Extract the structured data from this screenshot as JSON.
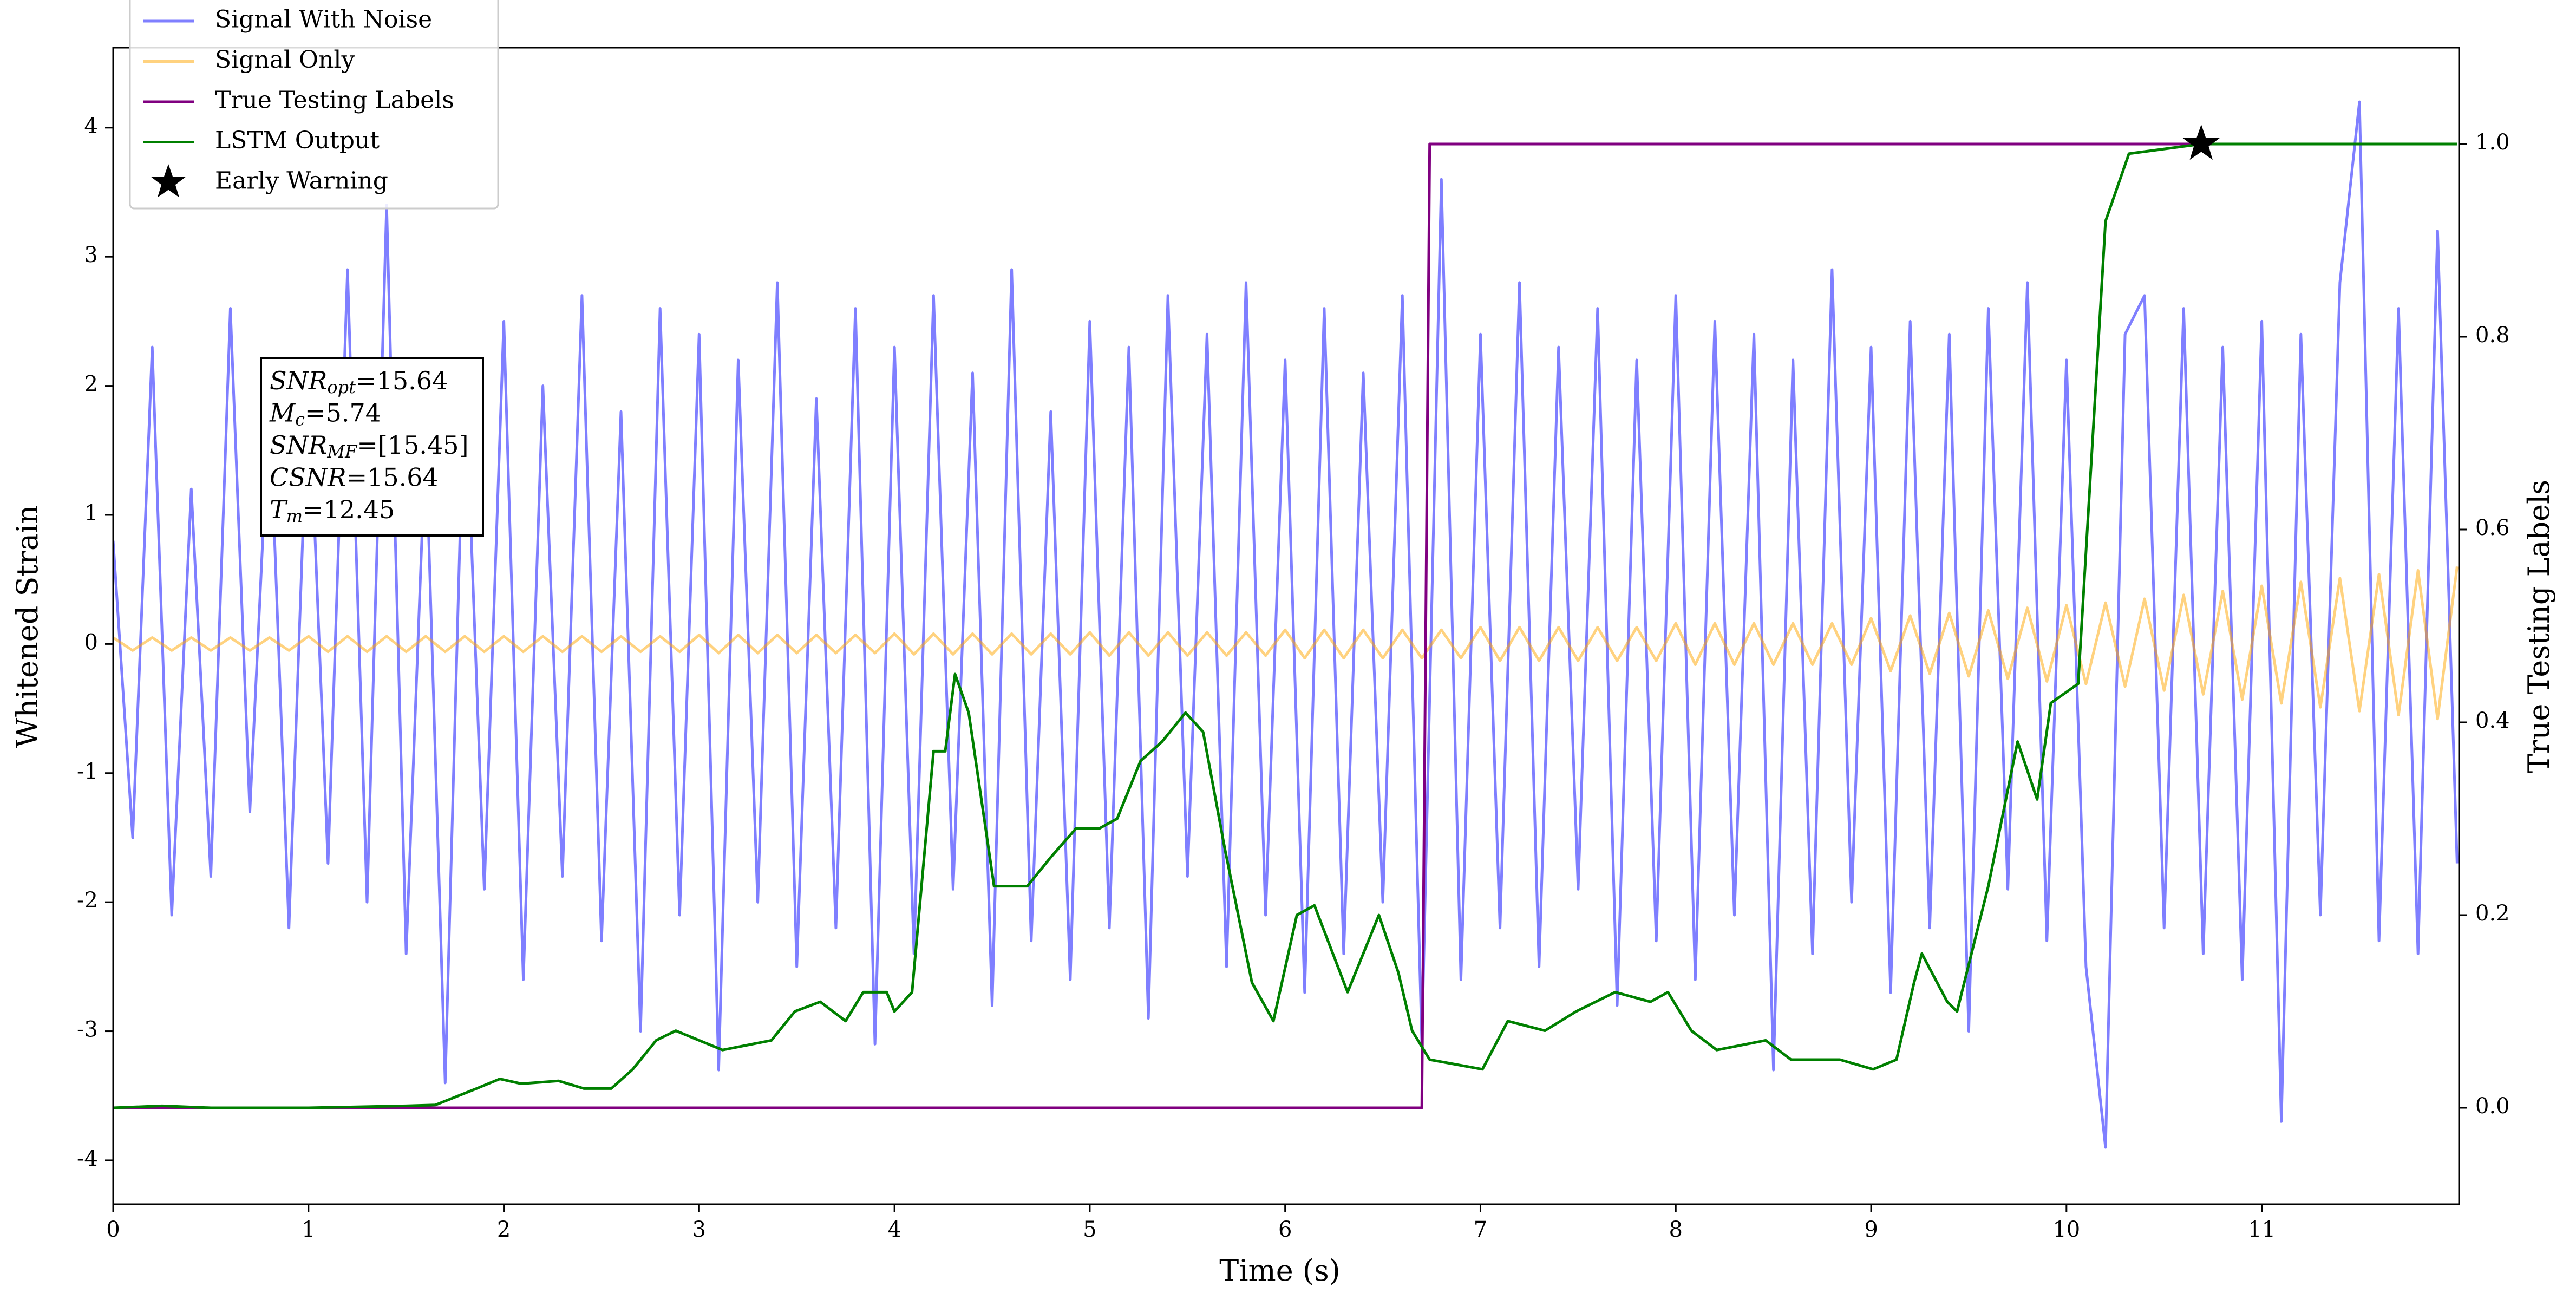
{
  "chart_data": {
    "type": "line",
    "xlabel": "Time (s)",
    "ylabel": "Whitened Strain",
    "y2label": "True Testing Labels",
    "xlim": [
      0,
      12.01
    ],
    "ylim": [
      -4.34,
      4.62
    ],
    "y2lim": [
      -0.1,
      1.1
    ],
    "xticks": [
      0,
      1,
      2,
      3,
      4,
      5,
      6,
      7,
      8,
      9,
      10,
      11
    ],
    "yticks": [
      -4,
      -3,
      -2,
      -1,
      0,
      1,
      2,
      3,
      4
    ],
    "y2ticks": [
      {
        "value": 0,
        "label": "0.0"
      },
      0.2,
      0.4,
      0.6,
      0.8,
      {
        "value": 1,
        "label": "1.0"
      }
    ],
    "legend": "upper left",
    "annotation": [
      {
        "name": "SNR",
        "sub": "opt",
        "text": "=15.64"
      },
      {
        "name": "M",
        "sub": "c",
        "text": "=5.74"
      },
      {
        "name": "SNR",
        "sub": "MF",
        "text": "=[15.45]"
      },
      {
        "name": "CSNR",
        "sub": null,
        "text": "=15.64"
      },
      {
        "name": "T",
        "sub": "m",
        "text": "=12.45"
      }
    ],
    "series": [
      {
        "name": "Signal With Noise",
        "color": "#0000ff",
        "alpha": 0.5,
        "x": [
          0,
          0.1,
          0.2,
          0.3,
          0.4,
          0.5,
          0.6,
          0.7,
          0.8,
          0.9,
          1,
          1.1,
          1.2,
          1.3,
          1.4,
          1.5,
          1.6,
          1.7,
          1.8,
          1.9,
          2,
          2.1,
          2.2,
          2.3,
          2.4,
          2.5,
          2.6,
          2.7,
          2.8,
          2.9,
          3,
          3.1,
          3.2,
          3.3,
          3.4,
          3.5,
          3.6,
          3.7,
          3.8,
          3.9,
          4,
          4.1,
          4.2,
          4.3,
          4.4,
          4.5,
          4.6,
          4.7,
          4.8,
          4.9,
          5,
          5.1,
          5.2,
          5.3,
          5.4,
          5.5,
          5.6,
          5.7,
          5.8,
          5.9,
          6,
          6.1,
          6.2,
          6.3,
          6.4,
          6.5,
          6.6,
          6.7,
          6.8,
          6.9,
          7,
          7.1,
          7.2,
          7.3,
          7.4,
          7.5,
          7.6,
          7.7,
          7.8,
          7.9,
          8,
          8.1,
          8.2,
          8.3,
          8.4,
          8.5,
          8.6,
          8.7,
          8.8,
          8.9,
          9,
          9.1,
          9.2,
          9.3,
          9.4,
          9.5,
          9.6,
          9.7,
          9.8,
          9.9,
          10,
          10.1,
          10.2,
          10.3,
          10.4,
          10.5,
          10.6,
          10.7,
          10.8,
          10.9,
          11,
          11.1,
          11.2,
          11.3,
          11.4,
          11.5,
          11.6,
          11.7,
          11.8,
          11.9,
          12
        ],
        "values": [
          0.8,
          -1.5,
          2.3,
          -2.1,
          1.2,
          -1.8,
          2.6,
          -1.3,
          1.9,
          -2.2,
          2.1,
          -1.7,
          2.9,
          -2.0,
          3.4,
          -2.4,
          1.6,
          -3.4,
          2.2,
          -1.9,
          2.5,
          -2.6,
          2.0,
          -1.8,
          2.7,
          -2.3,
          1.8,
          -3.0,
          2.6,
          -2.1,
          2.4,
          -3.3,
          2.2,
          -2.0,
          2.8,
          -2.5,
          1.9,
          -2.2,
          2.6,
          -3.1,
          2.3,
          -2.4,
          2.7,
          -1.9,
          2.1,
          -2.8,
          2.9,
          -2.3,
          1.8,
          -2.6,
          2.5,
          -2.2,
          2.3,
          -2.9,
          2.7,
          -1.8,
          2.4,
          -2.5,
          2.8,
          -2.1,
          2.2,
          -2.7,
          2.6,
          -2.4,
          2.1,
          -2.0,
          2.7,
          -3.1,
          3.6,
          -2.6,
          2.4,
          -2.2,
          2.8,
          -2.5,
          2.3,
          -1.9,
          2.6,
          -2.8,
          2.2,
          -2.3,
          2.7,
          -2.6,
          2.5,
          -2.1,
          2.4,
          -3.3,
          2.2,
          -2.4,
          2.9,
          -2.0,
          2.3,
          -2.7,
          2.5,
          -2.2,
          2.4,
          -3.0,
          2.6,
          -1.9,
          2.8,
          -2.3,
          2.2,
          -2.5,
          -3.9,
          2.4,
          2.7,
          -2.2,
          2.6,
          -2.4,
          2.3,
          -2.6,
          2.5,
          -3.7,
          2.4,
          -2.1,
          2.8,
          4.2,
          -2.3,
          2.6,
          -2.4,
          3.2,
          -1.7
        ]
      },
      {
        "name": "Signal Only",
        "color": "#ffa500",
        "alpha": 0.5,
        "x": [
          0,
          0.1,
          0.2,
          0.3,
          0.4,
          0.5,
          0.6,
          0.7,
          0.8,
          0.9,
          1,
          1.1,
          1.2,
          1.3,
          1.4,
          1.5,
          1.6,
          1.7,
          1.8,
          1.9,
          2,
          2.1,
          2.2,
          2.3,
          2.4,
          2.5,
          2.6,
          2.7,
          2.8,
          2.9,
          3,
          3.1,
          3.2,
          3.3,
          3.4,
          3.5,
          3.6,
          3.7,
          3.8,
          3.9,
          4,
          4.1,
          4.2,
          4.3,
          4.4,
          4.5,
          4.6,
          4.7,
          4.8,
          4.9,
          5,
          5.1,
          5.2,
          5.3,
          5.4,
          5.5,
          5.6,
          5.7,
          5.8,
          5.9,
          6,
          6.1,
          6.2,
          6.3,
          6.4,
          6.5,
          6.6,
          6.7,
          6.8,
          6.9,
          7,
          7.1,
          7.2,
          7.3,
          7.4,
          7.5,
          7.6,
          7.7,
          7.8,
          7.9,
          8,
          8.1,
          8.2,
          8.3,
          8.4,
          8.5,
          8.6,
          8.7,
          8.8,
          8.9,
          9,
          9.1,
          9.2,
          9.3,
          9.4,
          9.5,
          9.6,
          9.7,
          9.8,
          9.9,
          10,
          10.1,
          10.2,
          10.3,
          10.4,
          10.5,
          10.6,
          10.7,
          10.8,
          10.9,
          11,
          11.1,
          11.2,
          11.3,
          11.4,
          11.5,
          11.6,
          11.7,
          11.8,
          11.9,
          12
        ],
        "values": [
          0.05,
          -0.05,
          0.05,
          -0.05,
          0.05,
          -0.05,
          0.05,
          -0.05,
          0.05,
          -0.05,
          0.06,
          -0.06,
          0.06,
          -0.06,
          0.06,
          -0.06,
          0.06,
          -0.06,
          0.06,
          -0.06,
          0.06,
          -0.06,
          0.06,
          -0.06,
          0.06,
          -0.06,
          0.06,
          -0.06,
          0.06,
          -0.06,
          0.07,
          -0.07,
          0.07,
          -0.07,
          0.07,
          -0.07,
          0.07,
          -0.07,
          0.07,
          -0.07,
          0.08,
          -0.08,
          0.08,
          -0.08,
          0.08,
          -0.08,
          0.08,
          -0.08,
          0.08,
          -0.08,
          0.09,
          -0.09,
          0.09,
          -0.09,
          0.09,
          -0.09,
          0.09,
          -0.09,
          0.09,
          -0.09,
          0.11,
          -0.11,
          0.11,
          -0.11,
          0.11,
          -0.11,
          0.11,
          -0.11,
          0.11,
          -0.11,
          0.13,
          -0.13,
          0.13,
          -0.13,
          0.13,
          -0.13,
          0.13,
          -0.13,
          0.13,
          -0.13,
          0.16,
          -0.16,
          0.16,
          -0.16,
          0.16,
          -0.16,
          0.16,
          -0.16,
          0.16,
          -0.16,
          0.2,
          -0.21,
          0.22,
          -0.23,
          0.24,
          -0.25,
          0.26,
          -0.27,
          0.28,
          -0.29,
          0.3,
          -0.31,
          0.32,
          -0.33,
          0.35,
          -0.36,
          0.38,
          -0.39,
          0.41,
          -0.43,
          0.45,
          -0.46,
          0.48,
          -0.49,
          0.51,
          -0.52,
          0.54,
          -0.55,
          0.57,
          -0.58,
          0.6
        ]
      },
      {
        "name": "True Testing Labels",
        "color": "#800080",
        "alpha": 1,
        "axis": "y2",
        "x": [
          0,
          6.7,
          6.74,
          12
        ],
        "values": [
          0,
          0,
          1,
          1
        ]
      },
      {
        "name": "LSTM Output",
        "color": "#008000",
        "alpha": 1,
        "axis": "y2",
        "x": [
          0,
          0.25,
          0.5,
          1,
          1.5,
          1.65,
          1.86,
          1.98,
          2.09,
          2.28,
          2.41,
          2.55,
          2.66,
          2.78,
          2.88,
          3.12,
          3.37,
          3.49,
          3.62,
          3.75,
          3.84,
          3.96,
          4.0,
          4.09,
          4.2,
          4.26,
          4.31,
          4.38,
          4.51,
          4.68,
          4.8,
          4.93,
          5.05,
          5.14,
          5.26,
          5.37,
          5.49,
          5.58,
          5.69,
          5.83,
          5.94,
          6.06,
          6.15,
          6.32,
          6.48,
          6.58,
          6.65,
          6.74,
          7.01,
          7.14,
          7.33,
          7.49,
          7.69,
          7.87,
          7.96,
          8.08,
          8.21,
          8.46,
          8.59,
          8.84,
          9.01,
          9.13,
          9.22,
          9.26,
          9.39,
          9.44,
          9.6,
          9.75,
          9.85,
          9.92,
          10.06,
          10.2,
          10.32,
          10.69,
          12
        ],
        "values": [
          0,
          0.002,
          0,
          0,
          0.002,
          0.003,
          0.02,
          0.03,
          0.025,
          0.028,
          0.02,
          0.02,
          0.04,
          0.07,
          0.08,
          0.06,
          0.07,
          0.1,
          0.11,
          0.09,
          0.12,
          0.12,
          0.1,
          0.12,
          0.37,
          0.37,
          0.45,
          0.41,
          0.23,
          0.23,
          0.26,
          0.29,
          0.29,
          0.3,
          0.36,
          0.38,
          0.41,
          0.39,
          0.27,
          0.13,
          0.09,
          0.2,
          0.21,
          0.12,
          0.2,
          0.14,
          0.08,
          0.05,
          0.04,
          0.09,
          0.08,
          0.1,
          0.12,
          0.11,
          0.12,
          0.08,
          0.06,
          0.07,
          0.05,
          0.05,
          0.04,
          0.05,
          0.13,
          0.16,
          0.11,
          0.1,
          0.23,
          0.38,
          0.32,
          0.42,
          0.44,
          0.92,
          0.99,
          1,
          1
        ]
      },
      {
        "name": "Early Warning",
        "color": "#000000",
        "alpha": 1,
        "axis": "y2",
        "marker": "star",
        "x": [
          10.69
        ],
        "values": [
          1
        ]
      }
    ]
  }
}
